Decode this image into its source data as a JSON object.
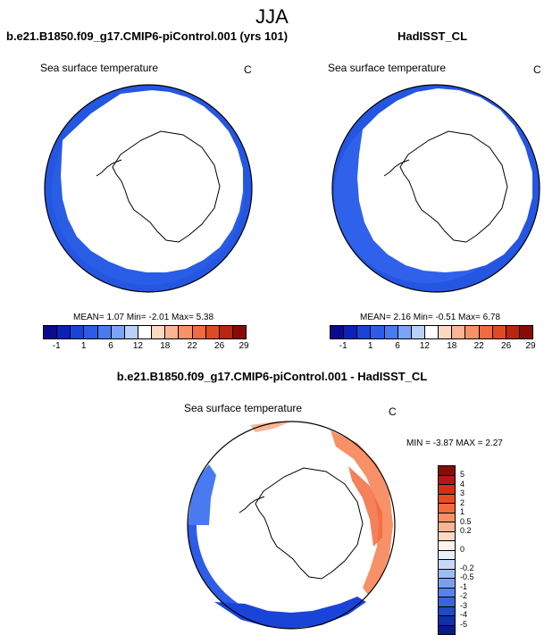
{
  "season": "JJA",
  "panel_left": {
    "title": "b.e21.B1850.f09_g17.CMIP6-piControl.001 (yrs 101)",
    "subtitle": "Sea surface temperature",
    "unit": "C",
    "stats": "MEAN=  1.07  Min=  -2.01  Max=  5.38"
  },
  "panel_right": {
    "title": "HadISST_CL",
    "subtitle": "Sea surface temperature",
    "unit": "C",
    "stats": "MEAN=  2.16  Min=  -0.51  Max=  6.78"
  },
  "panel_diff": {
    "title": "b.e21.B1850.f09_g17.CMIP6-piControl.001 - HadISST_CL",
    "subtitle": "Sea surface temperature",
    "unit": "C",
    "stats": "MIN = -3.87 MAX =  2.27"
  },
  "abs_colorbar": {
    "colors": [
      "#0a0a8f",
      "#0a22b8",
      "#1a44d8",
      "#2d5ce6",
      "#4a7af0",
      "#7ba4f6",
      "#b8d0fa",
      "#ffffff",
      "#fdd9c4",
      "#fbb494",
      "#f89068",
      "#f26a40",
      "#e04a22",
      "#b8260e",
      "#8a0b06"
    ],
    "ticks": [
      "-1",
      "1",
      "6",
      "12",
      "18",
      "22",
      "26",
      "29"
    ]
  },
  "diff_colorbar": {
    "colors": [
      "#8a0b06",
      "#b01a10",
      "#d03014",
      "#ea4c24",
      "#f26a40",
      "#f89068",
      "#fbb494",
      "#fdd9c4",
      "#fff3ec",
      "#e8f0fc",
      "#c6d8f8",
      "#9ebcf4",
      "#7aa0f0",
      "#5682ea",
      "#3a64dc",
      "#2248c4",
      "#1030a8",
      "#0a1a88"
    ],
    "labels": [
      "5",
      "4",
      "3",
      "2",
      "1",
      "0.5",
      "0.2",
      "0",
      "-0.2",
      "-0.5",
      "-1",
      "-2",
      "-3",
      "-4",
      "-5"
    ]
  }
}
